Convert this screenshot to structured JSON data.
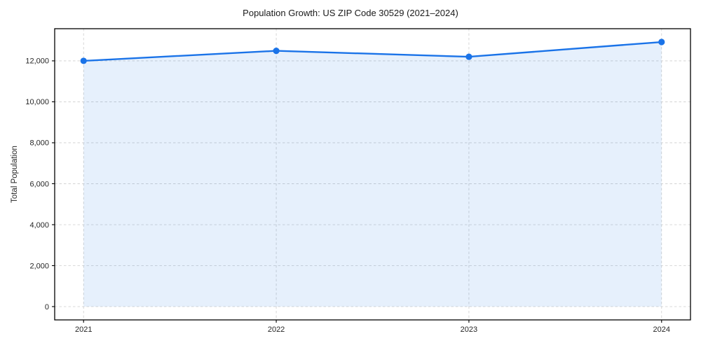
{
  "chart_data": {
    "type": "area",
    "title": "Population Growth: US ZIP Code 30529 (2021–2024)",
    "xlabel": "",
    "ylabel": "Total Population",
    "x": [
      2021,
      2022,
      2023,
      2024
    ],
    "xticks": [
      "2021",
      "2022",
      "2023",
      "2024"
    ],
    "series": [
      {
        "name": "Total Population",
        "values": [
          12000,
          12490,
          12200,
          12920
        ]
      }
    ],
    "yticks": [
      0,
      2000,
      4000,
      6000,
      8000,
      10000,
      12000
    ],
    "ylim": [
      -650,
      13570
    ],
    "xlim": [
      2020.85,
      2024.15
    ],
    "fill_to": 0,
    "grid": true,
    "grid_style": "dashed",
    "legend": "none",
    "colors": {
      "line": "#1a73e8",
      "marker": "#1a73e8",
      "fill": "#1a73e8",
      "fill_opacity": 0.11,
      "grid": "#cdcdcd",
      "spine": "#000000",
      "tick_text": "#262626",
      "title_text": "#1a1a1a",
      "background": "#ffffff"
    }
  }
}
